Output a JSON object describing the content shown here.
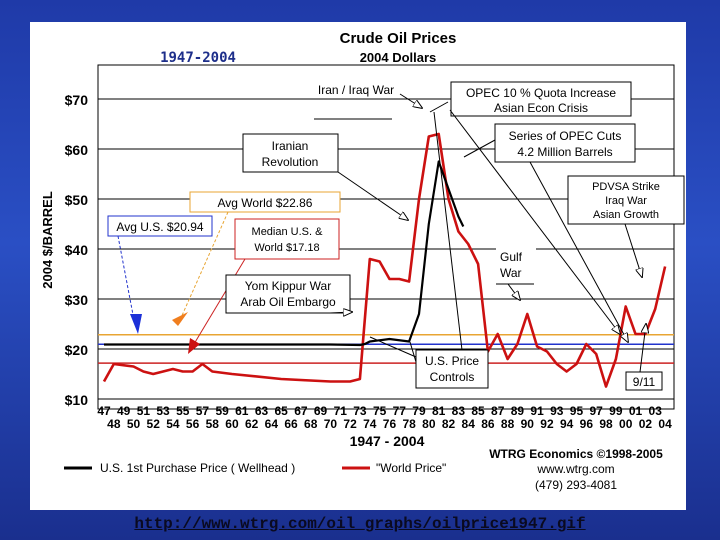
{
  "chart_data": {
    "type": "line",
    "title": "Crude Oil Prices",
    "subtitle": "2004 Dollars",
    "period_label": "1947-2004",
    "ylabel": "2004 $/BARREL",
    "xlabel": "1947 - 2004",
    "ylim": [
      10,
      75
    ],
    "xlim": [
      1947,
      2004.5
    ],
    "y_ticks": [
      "$10",
      "$20",
      "$30",
      "$40",
      "$50",
      "$60",
      "$70"
    ],
    "x_ticks_top": [
      "47",
      "49",
      "51",
      "53",
      "55",
      "57",
      "59",
      "61",
      "63",
      "65",
      "67",
      "69",
      "71",
      "73",
      "75",
      "77",
      "79",
      "81",
      "83",
      "85",
      "87",
      "89",
      "91",
      "93",
      "95",
      "97",
      "99",
      "01",
      "03"
    ],
    "x_ticks_bottom": [
      "48",
      "50",
      "52",
      "54",
      "56",
      "58",
      "60",
      "62",
      "64",
      "66",
      "68",
      "70",
      "72",
      "74",
      "76",
      "78",
      "80",
      "82",
      "84",
      "86",
      "88",
      "90",
      "92",
      "94",
      "96",
      "98",
      "00",
      "02",
      "04"
    ],
    "series": [
      {
        "name": "U.S. 1st Purchase Price ( Wellhead )",
        "color": "#000000",
        "x": [
          1947,
          1970,
          1973,
          1973.5,
          1974,
          1976,
          1978,
          1979,
          1980,
          1981,
          1982,
          1983,
          1983.5
        ],
        "values": [
          20.9,
          20.9,
          20.8,
          21,
          21.5,
          22,
          21.5,
          27,
          45,
          57.5,
          52,
          46.5,
          44.5
        ]
      },
      {
        "name": "\"World Price\"",
        "color": "#cc1111",
        "x": [
          1947,
          1948,
          1950,
          1951,
          1952,
          1953,
          1954,
          1955,
          1956,
          1957,
          1958,
          1960,
          1965,
          1970,
          1972,
          1973,
          1974,
          1975,
          1976,
          1977,
          1978,
          1979,
          1980,
          1981,
          1982,
          1983,
          1984,
          1985,
          1986,
          1987,
          1988,
          1989,
          1990,
          1991,
          1992,
          1993,
          1994,
          1995,
          1996,
          1997,
          1998,
          1999,
          2000,
          2001,
          2002,
          2003,
          2004
        ],
        "values": [
          13.5,
          17,
          16.5,
          15.5,
          15,
          15.5,
          16,
          15.5,
          15.5,
          17,
          15.5,
          15,
          14,
          13.5,
          13.5,
          14,
          38,
          37.5,
          34,
          34,
          33.5,
          50,
          62.5,
          63,
          50,
          43.5,
          41,
          37,
          19.5,
          23,
          18,
          21,
          27,
          20.5,
          19.5,
          17,
          15.5,
          17,
          21,
          19,
          12.5,
          18,
          28.5,
          23,
          23,
          28,
          36.5
        ]
      }
    ],
    "reference_lines": [
      {
        "name": "Avg World $22.86",
        "value": 22.86,
        "color": "#e8a533"
      },
      {
        "name": "Avg U.S. $20.94",
        "value": 20.94,
        "color": "#2233cc"
      },
      {
        "name": "Median U.S. & World $17.18",
        "value": 17.18,
        "color": "#cc2222"
      }
    ],
    "annotations": {
      "iran_iraq_war": "Iran / Iraq War",
      "opec_quota_line1": "OPEC 10 % Quota Increase",
      "opec_quota_line2": "Asian Econ Crisis",
      "iranian_revolution_line1": "Iranian",
      "iranian_revolution_line2": "Revolution",
      "opec_cuts_line1": "Series of OPEC Cuts",
      "opec_cuts_line2": "4.2 Million Barrels",
      "pdvsa_line1": "PDVSA Strike",
      "pdvsa_line2": "Iraq War",
      "pdvsa_line3": "Asian Growth",
      "avg_world": "Avg World $22.86",
      "avg_us": "Avg U.S. $20.94",
      "median_line1": "Median U.S. &",
      "median_line2": "World $17.18",
      "yom_kippur_line1": "Yom Kippur War",
      "yom_kippur_line2": "Arab Oil Embargo",
      "gulf_war_line1": "Gulf",
      "gulf_war_line2": "War",
      "us_price_controls_line1": "U.S. Price",
      "us_price_controls_line2": "Controls",
      "nine_eleven": "9/11"
    },
    "credits": {
      "line1": "WTRG Economics  ©1998-2005",
      "line2": "www.wtrg.com",
      "line3": "(479) 293-4081"
    },
    "legend_placement": "bottom-left",
    "grid": "horizontal"
  },
  "source_link": "http://www.wtrg.com/oil_graphs/oilprice1947.gif"
}
